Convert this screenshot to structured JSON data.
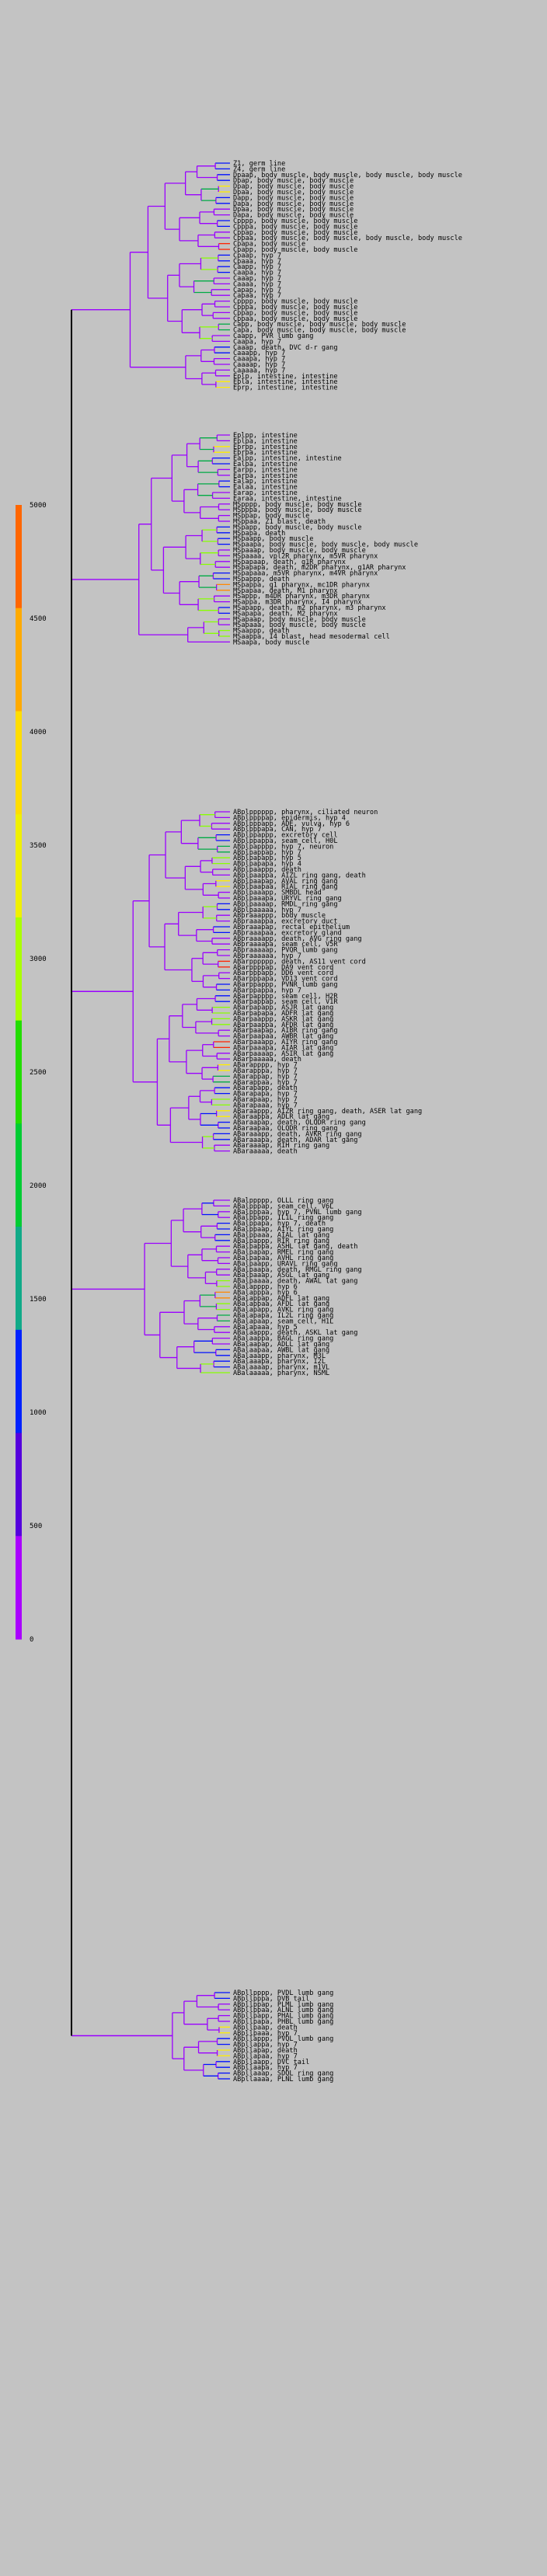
{
  "diagram": {
    "type": "lineage-tree",
    "background": "#c3c3c3",
    "scale_bar": {
      "ticks": [
        "5000",
        "4500",
        "4000",
        "3500",
        "3000",
        "2500",
        "2000",
        "1500",
        "1000",
        "500",
        "0"
      ],
      "colors": [
        "#ff6600",
        "#ffaa00",
        "#ffdd00",
        "#f0f000",
        "#aaff00",
        "#22dd00",
        "#00cc33",
        "#11aa88",
        "#0022ff",
        "#5500dd",
        "#aa00ff"
      ]
    },
    "leaves_top": [
      "Z1, germ line",
      "Z4, germ line",
      "Dpaap, body muscle, body muscle, body muscle, body muscle",
      "Dpap, body muscle, body muscle",
      "Dpap, body muscle, body muscle",
      "Dpaa, body muscle, body muscle",
      "Dapp, body muscle, body muscle",
      "Dapa, body muscle, body muscle",
      "Dpaa, body muscle, body muscle",
      "Dapa, body muscle, body muscle",
      "Cpppp, body muscle, body muscle",
      "Cpppa, body muscle, body muscle",
      "Cppap, body muscle, body muscle",
      "Cppaa, body muscle, body muscle, body muscle, body muscle",
      "Cpapa, body muscle",
      "Cpapp, body muscle, body muscle",
      "Cpaap, hyp 7",
      "Cpaaa, hyp 7",
      "Caapp, hyp 7",
      "Caapa, hyp 7",
      "Caaap, hyp 7",
      "Caaaa, hyp 7",
      "Capap, hyp 7",
      "Capaa, hyp 7",
      "Cpppp, body muscle, body muscle",
      "Cpppa, body muscle, body muscle",
      "Cppap, body muscle, body muscle",
      "Cppaa, body muscle, body muscle",
      "Capp, body muscle, body muscle, body muscle",
      "Capa, body muscle, body muscle, body muscle",
      "Caapp, PVR lumb gang",
      "Caapa, hyp 7",
      "Caaap, death, DVC d-r gang",
      "Caaapp, hyp 7",
      "Caaapa, hyp 7",
      "Caaaap, hyp 7",
      "Caaaaa, hyp 7",
      "Eplp, intestine, intestine",
      "Epla, intestine, intestine",
      "Eprp, intestine, intestine"
    ],
    "leaves_mid": [
      "Eplpp, intestine",
      "Eplpa, intestine",
      "Eprpp, intestine",
      "Eprpa, intestine",
      "Ealpp, intestine, intestine",
      "Ealpa, intestine",
      "Earpp, intestine",
      "Earpa, intestine",
      "Ealap, intestine",
      "Ealaa, intestine",
      "Earap, intestine",
      "Earaa, intestine, intestine",
      "MSpppp, body muscle, body muscle",
      "MSpppa, body muscle, body muscle",
      "MSppap, body muscle",
      "MSppaa, Z1 blast, death",
      "MSpapp, body muscle, body muscle",
      "MSpapa, death",
      "MSpaapp, body muscle",
      "MSpaapa, body muscle, body muscle, body muscle",
      "MSpaaap, body muscle, body muscle",
      "MSpaaaa, vpl2R pharynx, m5VR pharynx",
      "MSpapaap, death, g1R pharynx",
      "MSpapapa, death, m2DR pharynx, g1AR pharynx",
      "MSpapaaa, m5VR pharynx, m4VR pharynx",
      "MSpappp, death",
      "MSpappa, g1 pharynx, mc1DR pharynx",
      "MSpapaa, death, M1 pharynx",
      "MSappp, m4DR pharynx, m3DR pharynx",
      "MSappa, m3DR pharynx, I4 pharynx",
      "MSapapp, death, m2 pharynx, m3 pharynx",
      "MSapapa, death, M2 pharynx",
      "MSapaap, body muscle, body muscle",
      "MSapaaa, body muscle, body muscle",
      "MSaappp, death",
      "MSaappa, I4 blast, head mesodermal cell",
      "MSaapa, body muscle"
    ],
    "leaves_ab": [
      "ABplpppppp, pharynx, ciliated neuron",
      "ABplppppap, epidermis, hyp 4",
      "ABplpppapp, ADE, vulva, hyp 6",
      "ABplpppapa, CAN, hyp 7",
      "ABplppappp, excretory cell",
      "ABplppappa, seam cell, H0L",
      "ABplpapppp, hyp 7, neuron",
      "ABplpappap, hyp 7",
      "ABplpapapp, hyp 5",
      "ABplpapapa, hyp 4",
      "ABplpaappp, death",
      "ABplpaappa, AIZL ring gang, death",
      "ABplpaapap, AVAL ring gang",
      "ABplpaapaa, RIAL ring gang",
      "ABplpaaapp, SMBDL head",
      "ABplpaaapa, URYVL ring gang",
      "ABplpaaaap, RMDL ring gang",
      "ABplpaaaaa, hyp 7",
      "ABpraaappp, body muscle",
      "ABpraaappa, excretory duct",
      "ABpraaapap, rectal epithelium",
      "ABpraaapaa, excretory gland",
      "ABpraaaapp, death, AVG ring gang",
      "ABpraaaapa, seam cell, V5R",
      "ABpraaaaap, PVQR lumb gang",
      "ABpraaaaaa, hyp 7",
      "ABarpppppp, death, AS11 vent cord",
      "ABarppppap, DA9 vent cord",
      "ABarpppapp, DD6 vent cord",
      "ABarpppapa, VD13 vent cord",
      "ABarppappp, PVNR lumb gang",
      "ABarppappa, hyp 7",
      "ABarpapppp, seam cell, H2R",
      "ABarpappap, seam cell, V1R",
      "ABarpapapp, ASJR lat gang",
      "ABarpapapa, ADFR lat gang",
      "ABarpaappp, ASKR lat gang",
      "ABarpaappa, AFDR lat gang",
      "ABarpaapap, AIBR ring gang",
      "ABarpaapaa, AWBR lat gang",
      "ABarpaaapp, AIYR ring gang",
      "ABarpaaapa, AIAR lat gang",
      "ABarpaaaap, ASIR lat gang",
      "ABarpaaaaa, death",
      "ABarapppp, hyp 7",
      "ABarapppa, hyp 7",
      "ABarappap, hyp 7",
      "ABarappaa, hyp 7",
      "ABarapapp, death",
      "ABarapapa, hyp 7",
      "ABarapaap, hyp 7",
      "ABarapaaa, hyp 7",
      "ABaraappp, AIZR ring gang, death, ASER lat gang",
      "ABaraappa, ADLR lat gang",
      "ABaraapap, death, OLQDR ring gang",
      "ABaraapaa, OLQDR ring gang",
      "ABaraaapp, death, AVKR ring gang",
      "ABaraaapa, death, ADAR lat gang",
      "ABaraaaap, RIH ring gang",
      "ABaraaaaa, death"
    ],
    "leaves_ab2": [
      "ABalppppp, OLLL ring gang",
      "ABalpppap, seam cell, V6L",
      "ABalpppaa, hyp 7, PVNL lumb gang",
      "ABalppapp, IL1L ring gang",
      "ABalppapa, hyp 7, death",
      "ABalppaap, AIYL ring gang",
      "ABalppaaa, AIAL lat gang",
      "ABalpappp, RIR ring gang",
      "ABalpappa, ASHL lat gang, death",
      "ABalpapap, RMEL ring gang",
      "ABalpapaa, AVHL ring gang",
      "ABalpaapp, URAVL ring gang",
      "ABalpaapa, death, RMGL ring gang",
      "ABalpaaap, ASGL lat gang",
      "ABalpaaaa, death, AWAL lat gang",
      "ABalapppp, hyp 6",
      "ABalapppa, hyp 6",
      "ABalappap, ADFL lat gang",
      "ABalappaa, AFDL lat gang",
      "ABalapapp, AVKL ring gang",
      "ABalapapa, IL2L ring gang",
      "ABalapaap, seam cell, H1L",
      "ABalapaaa, hyp 5",
      "ABalaappp, death, ASKL lat gang",
      "ABalaappa, BAGL ring gang",
      "ABalaapap, ADLL lat gang",
      "ABalaapaa, AWBL lat gang",
      "ABalaaapp, pharynx, M3L",
      "ABalaaapa, pharynx, I2L",
      "ABalaaaap, pharynx, m1VL",
      "ABalaaaaa, pharynx, NSML"
    ],
    "leaves_tail": [
      "ABpllpppp, PVDL lumb gang",
      "ABpllpppa, DVB tail",
      "ABpllppap, PLML lumb gang",
      "ABpllppaa, ALNL lumb gang",
      "ABpllpapp, PHAL lumb gang",
      "ABpllpapa, PHBL lumb gang",
      "ABpllpaap, death",
      "ABpllpaaa, hyp 7",
      "ABpllappp, PVQL lumb gang",
      "ABpllappa, hyp 7",
      "ABpllapap, death",
      "ABpllapaa, hyp 7",
      "ABpllaapp, DVC tail",
      "ABpllaapa, hyp 7",
      "ABpllaaap, SDQL ring gang",
      "ABpllaaaa, PLNL lumb gang"
    ]
  }
}
